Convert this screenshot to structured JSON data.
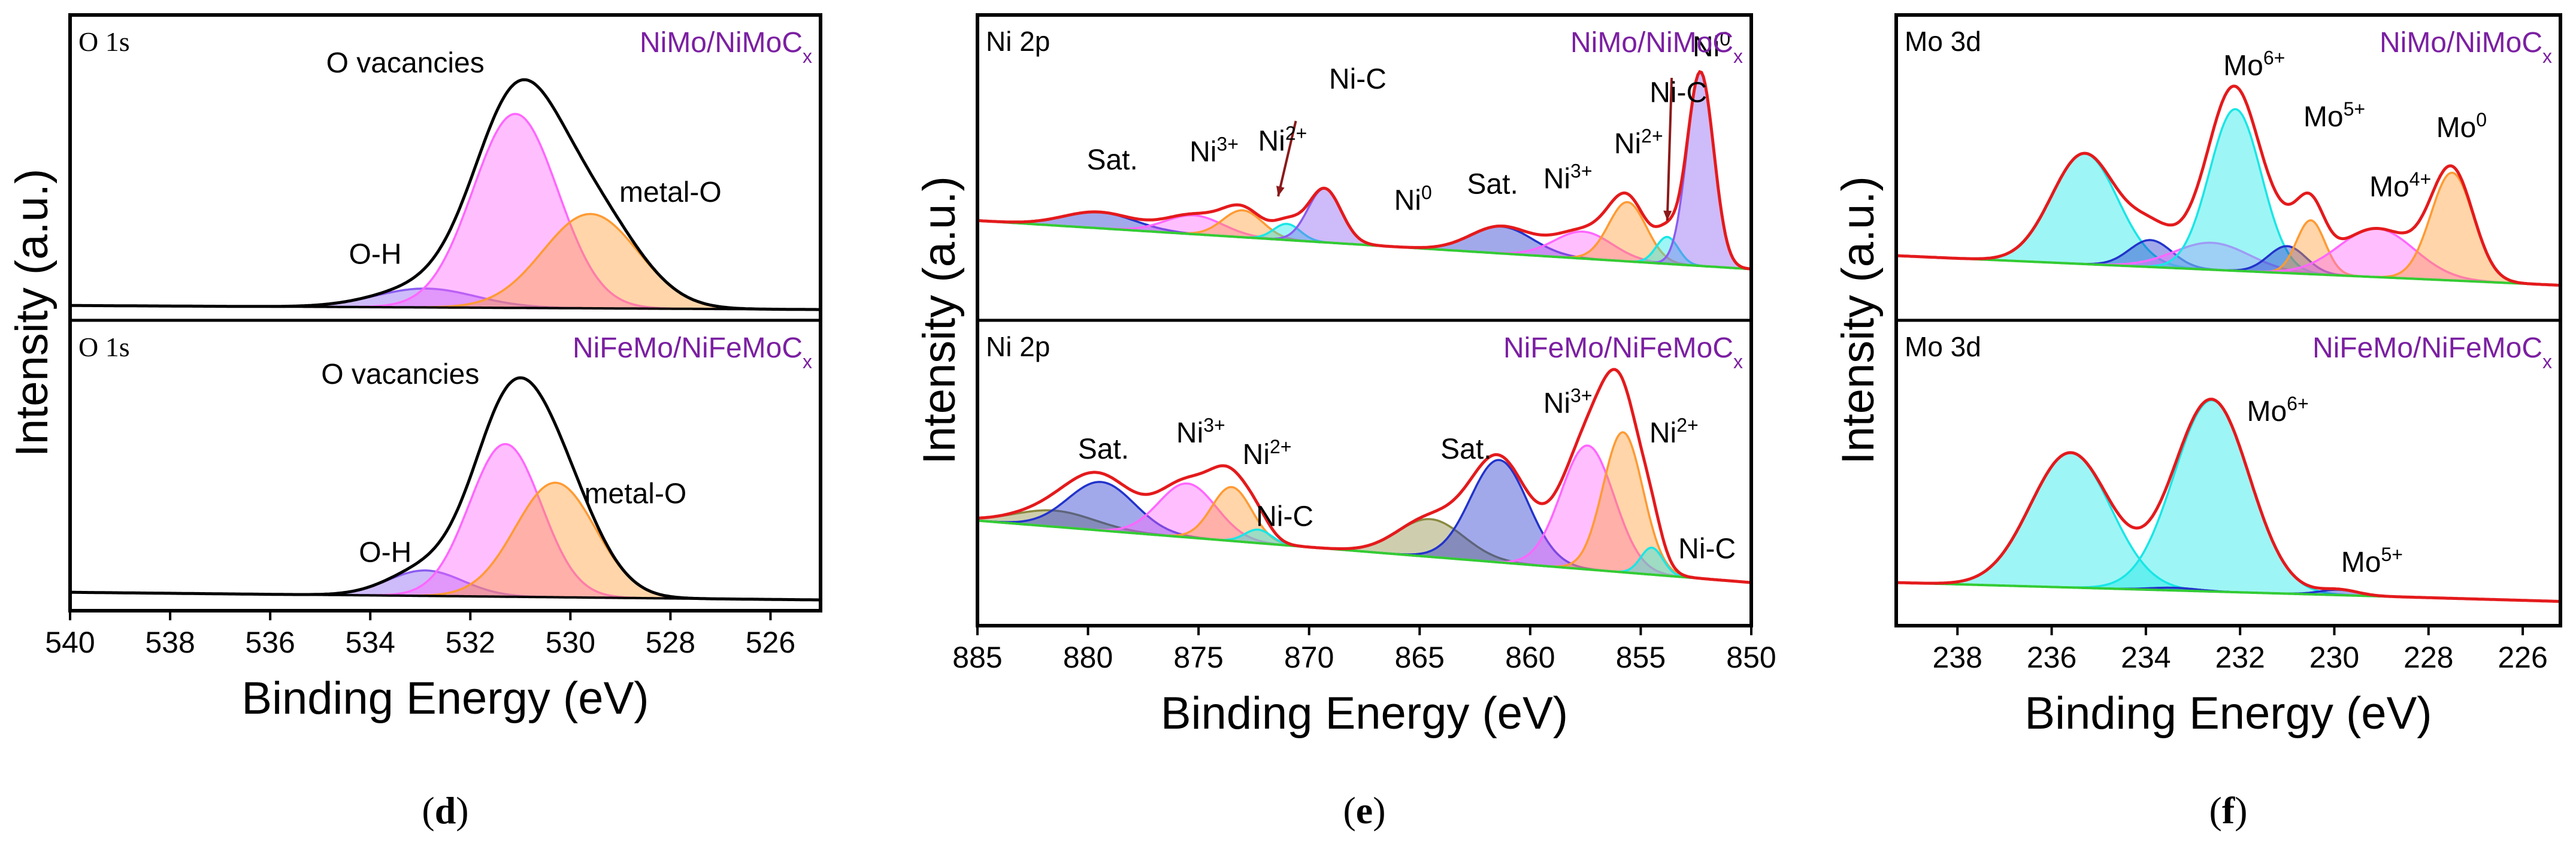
{
  "colors": {
    "sample_label": "#7b1fa2",
    "envelope_black": "#000000",
    "envelope_red": "#e41a1c",
    "background": "#33cc33",
    "magenta": "#ff66ff",
    "orange": "#ff9a33",
    "purple": "#8a5cf0",
    "blue": "#2233cc",
    "cyan": "#19e6e6",
    "olive": "#8a8a40"
  },
  "common": {
    "ylabel": "Intensity (a.u.)",
    "xlabel": "Binding Energy (eV)"
  },
  "chart_data": [
    {
      "type": "area",
      "panel": "(d)",
      "panel_letter": "d",
      "xlabel": "Binding Energy (eV)",
      "ylabel": "Intensity (a.u.)",
      "xlim": [
        540,
        525
      ],
      "xticks": [
        540,
        538,
        536,
        534,
        532,
        530,
        528,
        526
      ],
      "subplots": [
        {
          "core_level": "O 1s",
          "sample": "NiMo/NiMoC",
          "sample_sub": "x",
          "envelope_color": "#000000",
          "background_color": "#000000",
          "background": {
            "start": 0.015,
            "end": 0.0
          },
          "components": [
            {
              "name": "O-H",
              "center": 532.9,
              "height": 0.07,
              "width": 1.0,
              "color": "#8a5cf0"
            },
            {
              "name": "O vacancies",
              "center": 531.1,
              "height": 0.72,
              "width": 0.85,
              "color": "#ff66ff"
            },
            {
              "name": "metal-O",
              "center": 529.6,
              "height": 0.35,
              "width": 0.95,
              "color": "#ff9a33"
            }
          ],
          "peak_labels": [
            {
              "text": "O vacancies",
              "x": 533.3,
              "y": 0.88
            },
            {
              "text": "metal-O",
              "x": 528.0,
              "y": 0.4
            },
            {
              "text": "O-H",
              "x": 533.9,
              "y": 0.17
            }
          ]
        },
        {
          "core_level": "O 1s",
          "sample": "NiFeMo/NiFeMoC",
          "sample_sub": "x",
          "envelope_color": "#000000",
          "background_color": "#000000",
          "background": {
            "start": 0.03,
            "end": 0.0
          },
          "components": [
            {
              "name": "O-H",
              "center": 532.9,
              "height": 0.1,
              "width": 0.75,
              "color": "#8a5cf0"
            },
            {
              "name": "O vacancies",
              "center": 531.3,
              "height": 0.6,
              "width": 0.72,
              "color": "#ff66ff"
            },
            {
              "name": "metal-O",
              "center": 530.3,
              "height": 0.45,
              "width": 0.8,
              "color": "#ff9a33"
            }
          ],
          "peak_labels": [
            {
              "text": "O vacancies",
              "x": 533.4,
              "y": 0.85
            },
            {
              "text": "metal-O",
              "x": 528.7,
              "y": 0.38
            },
            {
              "text": "O-H",
              "x": 533.7,
              "y": 0.15
            }
          ]
        }
      ]
    },
    {
      "type": "area",
      "panel": "(e)",
      "panel_letter": "e",
      "xlabel": "Binding Energy (eV)",
      "ylabel": "Intensity (a.u.)",
      "xlim": [
        885,
        850
      ],
      "xticks": [
        885,
        880,
        875,
        870,
        865,
        860,
        855,
        850
      ],
      "subplots": [
        {
          "core_level": "Ni 2p",
          "sample": "NiMo/NiMoC",
          "sample_sub": "x",
          "envelope_color": "#e41a1c",
          "background_color": "#33cc33",
          "background": {
            "start": 0.33,
            "end": 0.15
          },
          "components": [
            {
              "name": "Sat.",
              "center": 879.5,
              "height": 0.06,
              "width": 1.6,
              "color": "#2233cc"
            },
            {
              "name": "Ni3+",
              "center": 875.2,
              "height": 0.07,
              "width": 1.3,
              "color": "#ff66ff"
            },
            {
              "name": "Ni2+",
              "center": 873.0,
              "height": 0.1,
              "width": 0.9,
              "color": "#ff9a33"
            },
            {
              "name": "Ni-C",
              "center": 871.0,
              "height": 0.06,
              "width": 0.6,
              "color": "#19e6e6"
            },
            {
              "name": "Ni0",
              "center": 869.3,
              "height": 0.2,
              "width": 0.75,
              "color": "#8a5cf0"
            },
            {
              "name": "Sat.",
              "center": 861.3,
              "height": 0.1,
              "width": 1.4,
              "color": "#2233cc"
            },
            {
              "name": "Ni3+",
              "center": 857.6,
              "height": 0.1,
              "width": 1.3,
              "color": "#ff66ff"
            },
            {
              "name": "Ni2+",
              "center": 855.6,
              "height": 0.22,
              "width": 0.85,
              "color": "#ff9a33"
            },
            {
              "name": "Ni-C",
              "center": 853.8,
              "height": 0.1,
              "width": 0.5,
              "color": "#19e6e6"
            },
            {
              "name": "Ni0",
              "center": 852.3,
              "height": 0.72,
              "width": 0.6,
              "color": "#8a5cf0"
            }
          ],
          "peak_labels": [
            {
              "text": "Sat.",
              "sup": "",
              "x": 878.9,
              "y": 0.52
            },
            {
              "text": "Ni",
              "sup": "3+",
              "x": 874.3,
              "y": 0.55
            },
            {
              "text": "Ni",
              "sup": "2+",
              "x": 871.2,
              "y": 0.59
            },
            {
              "text": "Ni-C",
              "sup": "",
              "x": 867.8,
              "y": 0.82
            },
            {
              "text": "Ni",
              "sup": "0",
              "x": 865.3,
              "y": 0.37
            },
            {
              "text": "Sat.",
              "sup": "",
              "x": 861.7,
              "y": 0.43
            },
            {
              "text": "Ni",
              "sup": "3+",
              "x": 858.3,
              "y": 0.45
            },
            {
              "text": "Ni",
              "sup": "2+",
              "x": 855.1,
              "y": 0.58
            },
            {
              "text": "Ni-C",
              "sup": "",
              "x": 853.3,
              "y": 0.77
            },
            {
              "text": "Ni",
              "sup": "0",
              "x": 851.8,
              "y": 0.94
            }
          ],
          "arrows": [
            {
              "from_x": 870.6,
              "from_y": 0.7,
              "to_x": 871.4,
              "to_y": 0.42
            },
            {
              "from_x": 853.6,
              "from_y": 0.86,
              "to_x": 853.8,
              "to_y": 0.33
            }
          ]
        },
        {
          "core_level": "Ni 2p",
          "sample": "NiFeMo/NiFeMoC",
          "sample_sub": "x",
          "envelope_color": "#e41a1c",
          "background_color": "#33cc33",
          "background": {
            "start": 0.35,
            "end": 0.12
          },
          "components": [
            {
              "name": "Sat.",
              "center": 881.5,
              "height": 0.06,
              "width": 1.8,
              "color": "#8a8a40"
            },
            {
              "name": "Sat.",
              "center": 879.4,
              "height": 0.18,
              "width": 1.5,
              "color": "#2233cc"
            },
            {
              "name": "Ni3+",
              "center": 875.5,
              "height": 0.2,
              "width": 1.3,
              "color": "#ff66ff"
            },
            {
              "name": "Ni2+",
              "center": 873.5,
              "height": 0.2,
              "width": 0.9,
              "color": "#ff9a33"
            },
            {
              "name": "Ni-C",
              "center": 872.3,
              "height": 0.05,
              "width": 0.6,
              "color": "#19e6e6"
            },
            {
              "name": "Sat.",
              "center": 864.5,
              "height": 0.14,
              "width": 1.5,
              "color": "#8a8a40"
            },
            {
              "name": "Sat.",
              "center": 861.4,
              "height": 0.38,
              "width": 1.3,
              "color": "#2233cc"
            },
            {
              "name": "Ni3+",
              "center": 857.4,
              "height": 0.46,
              "width": 1.2,
              "color": "#ff66ff"
            },
            {
              "name": "Ni2+",
              "center": 855.8,
              "height": 0.52,
              "width": 0.9,
              "color": "#ff9a33"
            },
            {
              "name": "Ni-C",
              "center": 854.5,
              "height": 0.1,
              "width": 0.5,
              "color": "#19e6e6"
            }
          ],
          "peak_labels": [
            {
              "text": "Sat.",
              "sup": "",
              "x": 879.3,
              "y": 0.58
            },
            {
              "text": "Ni",
              "sup": "3+",
              "x": 874.9,
              "y": 0.64
            },
            {
              "text": "Ni",
              "sup": "2+",
              "x": 871.9,
              "y": 0.56
            },
            {
              "text": "Ni-C",
              "sup": "",
              "x": 871.1,
              "y": 0.33
            },
            {
              "text": "Sat.",
              "sup": "",
              "x": 862.9,
              "y": 0.58
            },
            {
              "text": "Ni",
              "sup": "3+",
              "x": 858.3,
              "y": 0.75
            },
            {
              "text": "Ni",
              "sup": "2+",
              "x": 853.5,
              "y": 0.64
            },
            {
              "text": "Ni-C",
              "sup": "",
              "x": 852.0,
              "y": 0.21
            }
          ],
          "arrows": []
        }
      ]
    },
    {
      "type": "area",
      "panel": "(f)",
      "panel_letter": "f",
      "xlabel": "Binding Energy (eV)",
      "ylabel": "Intensity (a.u.)",
      "xlim": [
        239.3,
        225.2
      ],
      "xticks": [
        238,
        236,
        234,
        232,
        230,
        228,
        226
      ],
      "subplots": [
        {
          "core_level": "Mo 3d",
          "sample": "NiMo/NiMoC",
          "sample_sub": "x",
          "envelope_color": "#e41a1c",
          "background_color": "#33cc33",
          "background": {
            "start": 0.2,
            "end": 0.09
          },
          "components": [
            {
              "name": "Mo6+",
              "center": 235.3,
              "height": 0.41,
              "width": 0.7,
              "color": "#19e6e6"
            },
            {
              "name": "Mo4+",
              "center": 233.9,
              "height": 0.1,
              "width": 0.45,
              "color": "#2233cc"
            },
            {
              "name": "Mo5+",
              "center": 232.6,
              "height": 0.1,
              "width": 0.8,
              "color": "#ff66ff"
            },
            {
              "name": "Mo6+",
              "center": 232.1,
              "height": 0.6,
              "width": 0.55,
              "color": "#19e6e6"
            },
            {
              "name": "Mo4+",
              "center": 231.0,
              "height": 0.1,
              "width": 0.4,
              "color": "#2233cc"
            },
            {
              "name": "Mo5+",
              "center": 230.5,
              "height": 0.2,
              "width": 0.3,
              "color": "#ff9a33"
            },
            {
              "name": "Mo4+",
              "center": 229.1,
              "height": 0.18,
              "width": 0.8,
              "color": "#ff66ff"
            },
            {
              "name": "Mo0",
              "center": 227.5,
              "height": 0.4,
              "width": 0.45,
              "color": "#ff9a33"
            }
          ],
          "peak_labels": [
            {
              "text": "Mo",
              "sup": "6+",
              "x": 231.7,
              "y": 0.87
            },
            {
              "text": "Mo",
              "sup": "5+",
              "x": 230.0,
              "y": 0.68
            },
            {
              "text": "Mo",
              "sup": "4+",
              "x": 228.6,
              "y": 0.42
            },
            {
              "text": "Mo",
              "sup": "0",
              "x": 227.3,
              "y": 0.64
            }
          ]
        },
        {
          "core_level": "Mo 3d",
          "sample": "NiFeMo/NiFeMoC",
          "sample_sub": "x",
          "envelope_color": "#e41a1c",
          "background_color": "#33cc33",
          "background": {
            "start": 0.12,
            "end": 0.05
          },
          "components": [
            {
              "name": "Mo6+",
              "center": 235.6,
              "height": 0.5,
              "width": 0.85,
              "color": "#19e6e6"
            },
            {
              "name": "Mo6+",
              "center": 232.6,
              "height": 0.71,
              "width": 0.8,
              "color": "#19e6e6"
            },
            {
              "name": "Mo4+",
              "center": 233.4,
              "height": 0.01,
              "width": 0.5,
              "color": "#2233cc"
            },
            {
              "name": "Mo5+",
              "center": 229.9,
              "height": 0.02,
              "width": 0.4,
              "color": "#2233cc"
            }
          ],
          "peak_labels": [
            {
              "text": "Mo",
              "sup": "6+",
              "x": 231.2,
              "y": 0.72
            },
            {
              "text": "Mo",
              "sup": "5+",
              "x": 229.2,
              "y": 0.16
            }
          ]
        }
      ]
    }
  ]
}
